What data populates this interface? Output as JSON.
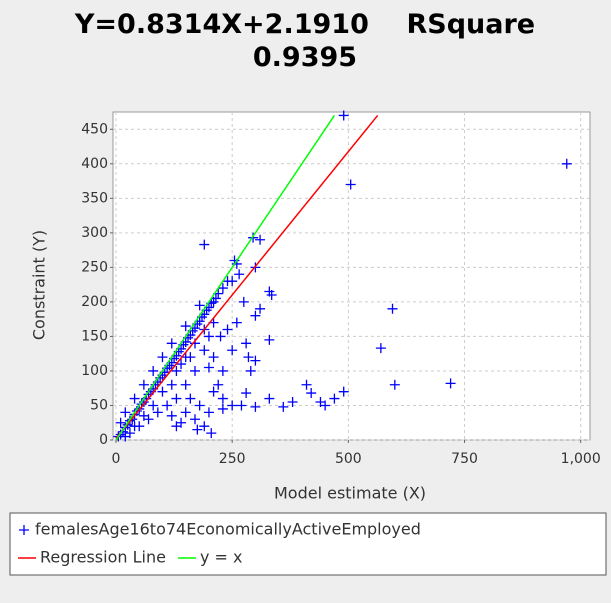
{
  "chart_data": {
    "type": "scatter",
    "title": "Y=0.8314X+2.1910    RSquare 0.9395",
    "x_label": "Model estimate (X)",
    "y_label": "Constraint (Y)",
    "xlim": [
      0,
      1020
    ],
    "ylim": [
      0,
      475
    ],
    "xticks": [
      0,
      250,
      500,
      750,
      {
        "value": 1000,
        "label": "1,000"
      }
    ],
    "yticks": [
      0,
      50,
      100,
      150,
      200,
      250,
      300,
      350,
      400,
      450
    ],
    "grid": true,
    "series": [
      {
        "name": "femalesAge16to74EconomicallyActiveEmployed",
        "color": "#0000ff",
        "marker": "+",
        "x": [
          490,
          505,
          970,
          190,
          295,
          310,
          255,
          260,
          265,
          250,
          300,
          330,
          335,
          310,
          300,
          595,
          570,
          600,
          720,
          490,
          410,
          420,
          440,
          470,
          450,
          380,
          360,
          330,
          300,
          280,
          270,
          250,
          230,
          230,
          220,
          210,
          200,
          190,
          175,
          205,
          290,
          330,
          280,
          250,
          240,
          260,
          275,
          285,
          300,
          230,
          210,
          225,
          200,
          180,
          170,
          160,
          150,
          140,
          130,
          120,
          5,
          10,
          15,
          20,
          25,
          30,
          35,
          40,
          45,
          50,
          55,
          60,
          65,
          70,
          75,
          80,
          85,
          90,
          95,
          100,
          105,
          110,
          115,
          120,
          125,
          130,
          135,
          140,
          145,
          150,
          155,
          160,
          165,
          170,
          175,
          180,
          185,
          190,
          195,
          200,
          205,
          210,
          215,
          220,
          230,
          240,
          180,
          150,
          120,
          100,
          80,
          60,
          40,
          20,
          30,
          50,
          70,
          90,
          110,
          130,
          150,
          170,
          190,
          130,
          100,
          80,
          60,
          40,
          20,
          10,
          140,
          160,
          120,
          200,
          210,
          190,
          170,
          150
        ],
        "y": [
          470,
          370,
          400,
          283,
          293,
          290,
          260,
          255,
          240,
          230,
          250,
          215,
          210,
          190,
          180,
          190,
          133,
          80,
          82,
          70,
          80,
          68,
          55,
          60,
          50,
          55,
          48,
          60,
          48,
          68,
          50,
          50,
          60,
          45,
          80,
          70,
          40,
          20,
          15,
          10,
          100,
          145,
          140,
          130,
          160,
          170,
          200,
          120,
          115,
          100,
          120,
          150,
          105,
          50,
          30,
          60,
          40,
          25,
          20,
          35,
          5,
          8,
          12,
          18,
          22,
          28,
          30,
          37,
          42,
          45,
          52,
          55,
          60,
          66,
          70,
          74,
          80,
          84,
          90,
          94,
          98,
          104,
          108,
          112,
          118,
          122,
          128,
          132,
          138,
          142,
          148,
          152,
          158,
          162,
          168,
          172,
          178,
          182,
          188,
          192,
          198,
          200,
          205,
          212,
          220,
          230,
          195,
          165,
          140,
          120,
          100,
          80,
          60,
          40,
          10,
          20,
          30,
          40,
          50,
          60,
          80,
          100,
          130,
          100,
          70,
          50,
          35,
          20,
          5,
          25,
          110,
          120,
          80,
          150,
          170,
          160,
          140,
          120
        ]
      },
      {
        "name": "Regression Line",
        "color": "#ff0000",
        "marker": "line",
        "x": [
          0,
          563
        ],
        "y": [
          2.19,
          470
        ]
      },
      {
        "name": "y = x",
        "color": "#00ff00",
        "marker": "line",
        "x": [
          0,
          470
        ],
        "y": [
          0,
          470
        ]
      }
    ]
  }
}
